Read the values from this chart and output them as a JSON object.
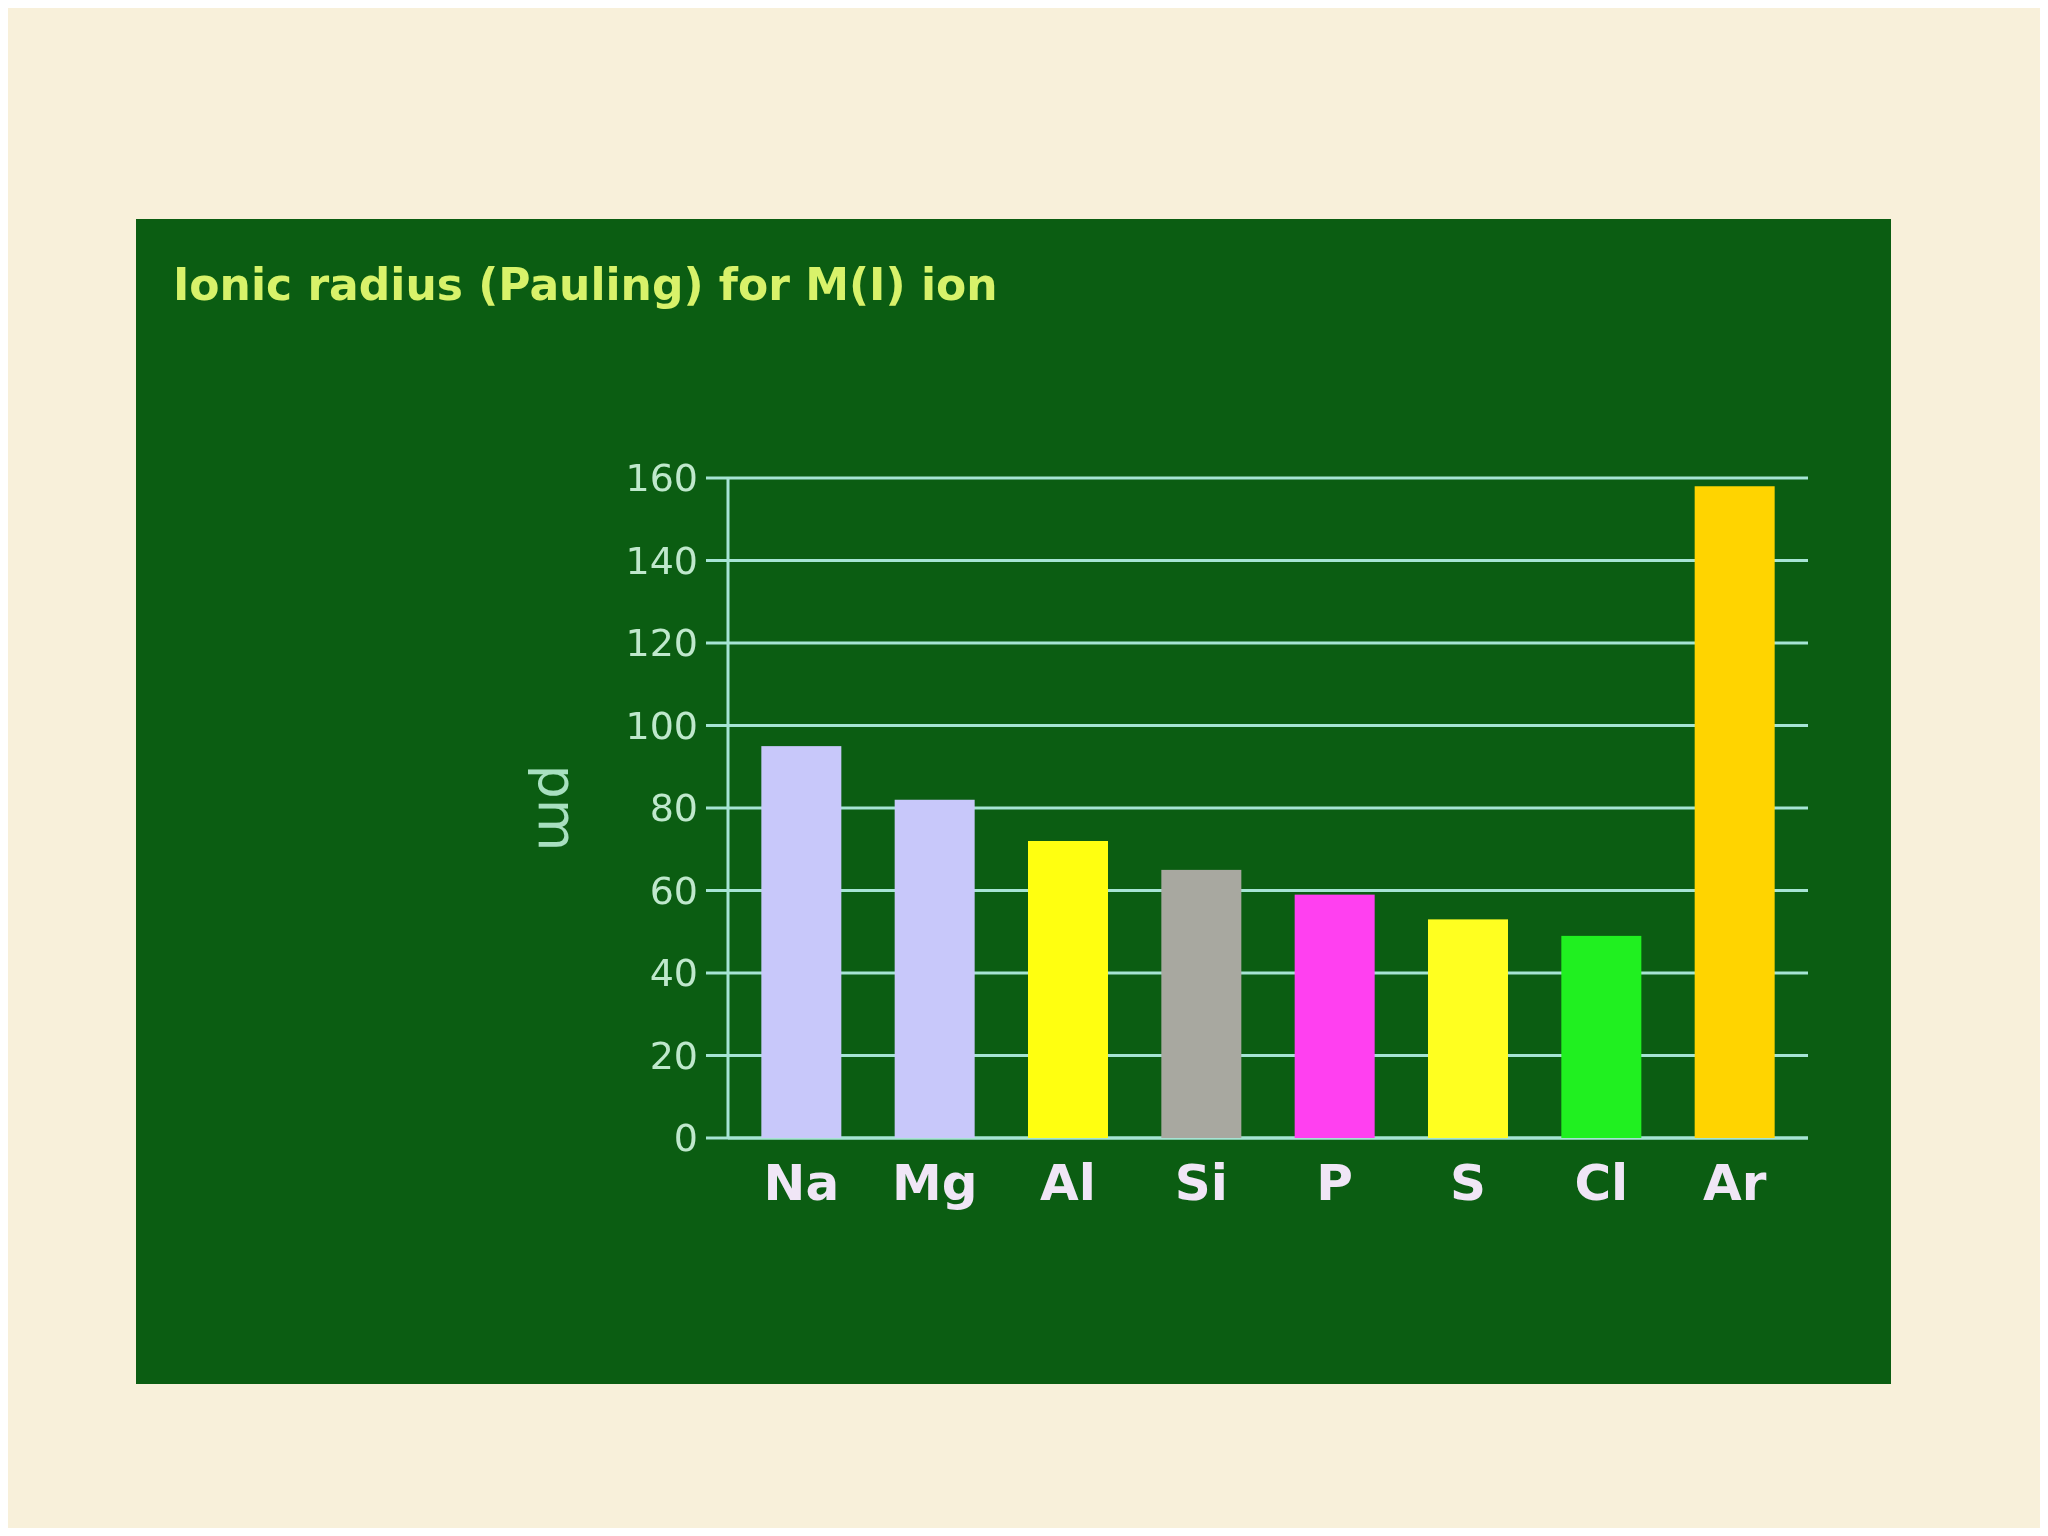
{
  "chart_data": {
    "type": "bar",
    "title": "Ionic radius (Pauling) for M(I) ion",
    "ylabel": "pm",
    "categories": [
      "Na",
      "Mg",
      "Al",
      "Si",
      "P",
      "S",
      "Cl",
      "Ar"
    ],
    "values": [
      95,
      82,
      72,
      65,
      59,
      53,
      49,
      158
    ],
    "colors": [
      "#c8c8fa",
      "#c8c8fa",
      "#ffff10",
      "#a8a8a0",
      "#ff40f0",
      "#ffff20",
      "#20f020",
      "#ffd400"
    ],
    "ylim": [
      0,
      160
    ],
    "yticks": [
      0,
      20,
      40,
      60,
      80,
      100,
      120,
      140,
      160
    ],
    "grid": "y"
  }
}
